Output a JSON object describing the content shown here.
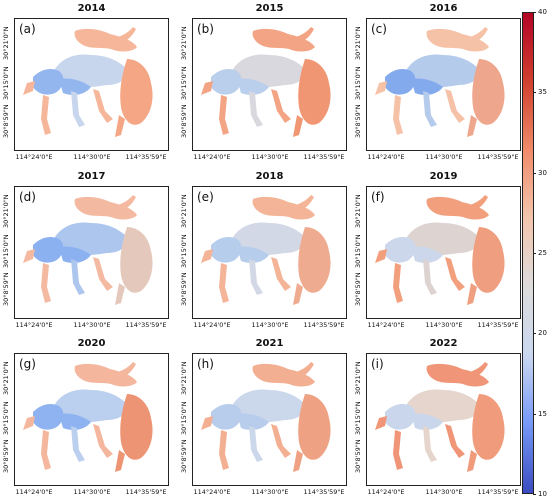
{
  "panels": [
    {
      "year": "2014",
      "label": "(a)",
      "palette": [
        "#f6b394",
        "#c5d3ed",
        "#8fb3ef",
        "#f4a27f"
      ]
    },
    {
      "year": "2015",
      "label": "(b)",
      "palette": [
        "#f3a07e",
        "#d9d6de",
        "#b6cdea",
        "#f0916c"
      ]
    },
    {
      "year": "2016",
      "label": "(c)",
      "palette": [
        "#f6bfa3",
        "#b2c9ec",
        "#7ea6ee",
        "#eea386"
      ]
    },
    {
      "year": "2017",
      "label": "(d)",
      "palette": [
        "#f4b79c",
        "#a9c3ee",
        "#86adf0",
        "#e4c6b9"
      ]
    },
    {
      "year": "2018",
      "label": "(e)",
      "palette": [
        "#f3b092",
        "#d0d6e5",
        "#b3cbeb",
        "#efa78a"
      ]
    },
    {
      "year": "2019",
      "label": "(f)",
      "palette": [
        "#f29a77",
        "#dcd2d0",
        "#cad5ea",
        "#ef9a79"
      ]
    },
    {
      "year": "2020",
      "label": "(g)",
      "palette": [
        "#f4b498",
        "#b8cdee",
        "#89aff0",
        "#ec8f6d"
      ]
    },
    {
      "year": "2021",
      "label": "(h)",
      "palette": [
        "#f3ab8d",
        "#c9d5ea",
        "#b5cbec",
        "#ef9e7d"
      ]
    },
    {
      "year": "2022",
      "label": "(i)",
      "palette": [
        "#f09070",
        "#e4d3cb",
        "#c7d4ec",
        "#ef9676"
      ]
    }
  ],
  "axes": {
    "x_ticks": [
      "114°24'0\"E",
      "114°30'0\"E",
      "114°35'59\"E"
    ],
    "y_ticks": [
      "30°21'0\"N",
      "30°15'0\"N",
      "30°8'59\"N"
    ]
  },
  "colorbar": {
    "ticks": [
      "40",
      "35",
      "30",
      "25",
      "20",
      "15",
      "10"
    ],
    "min": 10,
    "max": 40,
    "colors": [
      "#3b4cc0",
      "#7597f6",
      "#c9d7ef",
      "#dddcdc",
      "#f2c6ad",
      "#f08b6b",
      "#d0402f",
      "#b40426"
    ]
  }
}
